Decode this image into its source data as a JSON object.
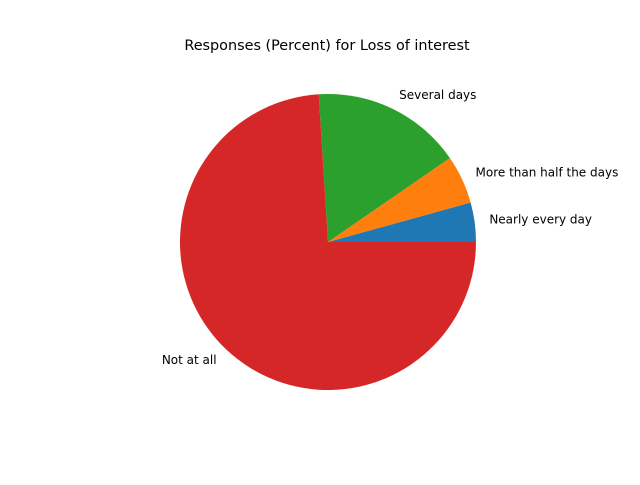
{
  "chart_data": {
    "type": "pie",
    "title": "Responses (Percent) for Loss of interest",
    "slices": [
      {
        "label": "Nearly every day",
        "value": 4.3,
        "color": "#1f77b4"
      },
      {
        "label": "More than half the days",
        "value": 5.3,
        "color": "#ff7f0e"
      },
      {
        "label": "Several days",
        "value": 16.4,
        "color": "#2ca02c"
      },
      {
        "label": "Not at all",
        "value": 74.0,
        "color": "#d62728"
      }
    ],
    "start_angle_deg": 0,
    "direction": "counterclockwise",
    "legend": "none"
  }
}
